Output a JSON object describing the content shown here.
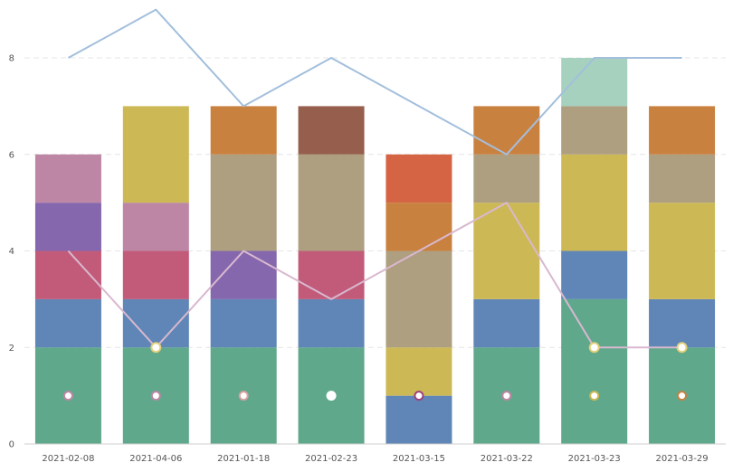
{
  "chart_data": {
    "type": "bar",
    "stacked": true,
    "categories": [
      "2021-02-08",
      "2021-04-06",
      "2021-01-18",
      "2021-02-23",
      "2021-03-15",
      "2021-03-22",
      "2021-03-23",
      "2021-03-29"
    ],
    "y_ticks": [
      "0",
      "2",
      "4",
      "6",
      "8"
    ],
    "ylim": [
      0,
      9.2
    ],
    "grid": true,
    "segment_colors": {
      "green": "#5fa88c",
      "blue": "#5f86b6",
      "rose": "#c25b7a",
      "purple": "#8567ad",
      "pink": "#bd86a5",
      "khaki": "#ae9f80",
      "mustard": "#ccb955",
      "orange": "#c98140",
      "brown": "#965f4d",
      "vermilion": "#d46444",
      "mint": "#a6d1bf"
    },
    "stacks": [
      [
        {
          "color": "green",
          "value": 2
        },
        {
          "color": "blue",
          "value": 1
        },
        {
          "color": "rose",
          "value": 1
        },
        {
          "color": "purple",
          "value": 1
        },
        {
          "color": "pink",
          "value": 1
        }
      ],
      [
        {
          "color": "green",
          "value": 2
        },
        {
          "color": "blue",
          "value": 1
        },
        {
          "color": "rose",
          "value": 1
        },
        {
          "color": "pink",
          "value": 1
        },
        {
          "color": "mustard",
          "value": 2
        }
      ],
      [
        {
          "color": "green",
          "value": 2
        },
        {
          "color": "blue",
          "value": 1
        },
        {
          "color": "purple",
          "value": 1
        },
        {
          "color": "khaki",
          "value": 2
        },
        {
          "color": "orange",
          "value": 1
        }
      ],
      [
        {
          "color": "green",
          "value": 2
        },
        {
          "color": "blue",
          "value": 1
        },
        {
          "color": "rose",
          "value": 1
        },
        {
          "color": "khaki",
          "value": 2
        },
        {
          "color": "brown",
          "value": 1
        }
      ],
      [
        {
          "color": "blue",
          "value": 1
        },
        {
          "color": "mustard",
          "value": 1
        },
        {
          "color": "khaki",
          "value": 2
        },
        {
          "color": "orange",
          "value": 1
        },
        {
          "color": "vermilion",
          "value": 1
        }
      ],
      [
        {
          "color": "green",
          "value": 2
        },
        {
          "color": "blue",
          "value": 1
        },
        {
          "color": "mustard",
          "value": 2
        },
        {
          "color": "khaki",
          "value": 1
        },
        {
          "color": "orange",
          "value": 1
        }
      ],
      [
        {
          "color": "green",
          "value": 3
        },
        {
          "color": "blue",
          "value": 1
        },
        {
          "color": "mustard",
          "value": 2
        },
        {
          "color": "khaki",
          "value": 1
        },
        {
          "color": "mint",
          "value": 1
        }
      ],
      [
        {
          "color": "green",
          "value": 2
        },
        {
          "color": "blue",
          "value": 1
        },
        {
          "color": "mustard",
          "value": 2
        },
        {
          "color": "khaki",
          "value": 1
        },
        {
          "color": "orange",
          "value": 1
        }
      ]
    ],
    "lines": [
      {
        "color": "#a3bfdc",
        "values": [
          8,
          9,
          7,
          8,
          7,
          6,
          8,
          8
        ],
        "markers": false
      },
      {
        "color": "#d9b8cf",
        "values": [
          4,
          2,
          4,
          3,
          4,
          5,
          2,
          2
        ],
        "markers": [
          false,
          true,
          false,
          false,
          false,
          false,
          true,
          true
        ]
      }
    ],
    "points": [
      {
        "value": 1,
        "ring": "#bd86a5"
      },
      {
        "value": 1,
        "ring": "#bd86a5"
      },
      {
        "value": 1,
        "ring": "#d8a0a0"
      },
      {
        "value": 1,
        "ring": "#ffffff"
      },
      {
        "value": 1,
        "ring": "#9e3f7a"
      },
      {
        "value": 1,
        "ring": "#bd86a5"
      },
      {
        "value": 1,
        "ring": "#ccb955"
      },
      {
        "value": 1,
        "ring": "#c98140"
      }
    ]
  }
}
